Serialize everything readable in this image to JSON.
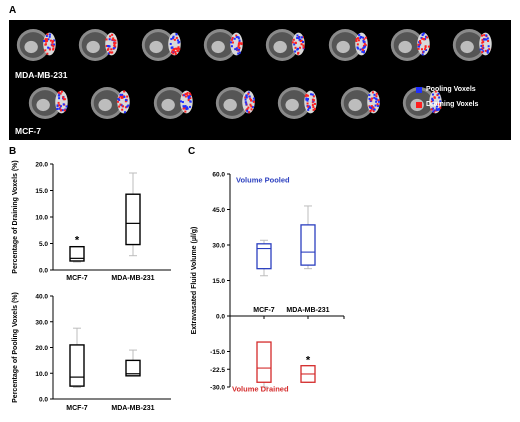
{
  "panels": {
    "a": {
      "letter": "A",
      "row1_label": "MDA-MB-231",
      "row2_label": "MCF-7",
      "legend": [
        {
          "label": "Pooling Voxels",
          "color": "#1f2fff"
        },
        {
          "label": "Draining Voxels",
          "color": "#ff2020"
        }
      ],
      "row1_count": 8,
      "row2_count": 7
    },
    "b": {
      "letter": "B"
    },
    "c": {
      "letter": "C"
    }
  },
  "chart_data": [
    {
      "id": "draining",
      "type": "boxplot",
      "ylabel": "Percentage of Draining Voxels (%)",
      "categories": [
        "MCF-7",
        "MDA-MB-231"
      ],
      "ylim": [
        0,
        20
      ],
      "yticks": [
        "0.0",
        "5.0",
        "10.0",
        "15.0",
        "20.0"
      ],
      "color": "#000000",
      "boxes": [
        {
          "whisker_low": 1.5,
          "q1": 1.7,
          "median": 2.2,
          "q3": 4.4,
          "whisker_high": 4.4
        },
        {
          "whisker_low": 2.7,
          "q1": 4.8,
          "median": 8.8,
          "q3": 14.3,
          "whisker_high": 18.3
        }
      ],
      "annotations": [
        {
          "category": "MCF-7",
          "text": "*"
        }
      ]
    },
    {
      "id": "pooling",
      "type": "boxplot",
      "ylabel": "Percentage of Pooling Voxels (%)",
      "categories": [
        "MCF-7",
        "MDA-MB-231"
      ],
      "ylim": [
        0,
        40
      ],
      "yticks": [
        "0.0",
        "10.0",
        "20.0",
        "30.0",
        "40.0"
      ],
      "color": "#000000",
      "boxes": [
        {
          "whisker_low": 4.5,
          "q1": 5.0,
          "median": 8.5,
          "q3": 21.0,
          "whisker_high": 27.5
        },
        {
          "whisker_low": 9.0,
          "q1": 9.0,
          "median": 9.8,
          "q3": 15.0,
          "whisker_high": 19.0
        }
      ],
      "annotations": []
    },
    {
      "id": "volume",
      "type": "boxplot",
      "ylabel": "Extravasated Fluid Volume (µl/g)",
      "categories": [
        "MCF-7",
        "MDA-MB-231"
      ],
      "ylim": [
        -30,
        60
      ],
      "yticks": [
        "60.0",
        "45.0",
        "30.0",
        "15.0",
        "0.0",
        "-15.0",
        "-22.5",
        "-30.0"
      ],
      "series": [
        {
          "name": "Volume Pooled",
          "color": "#2b3fbf",
          "boxes": [
            {
              "whisker_low": 17.0,
              "q1": 20.0,
              "median": 28.5,
              "q3": 30.5,
              "whisker_high": 32.0
            },
            {
              "whisker_low": 20.0,
              "q1": 21.5,
              "median": 27.0,
              "q3": 38.5,
              "whisker_high": 46.5
            }
          ]
        },
        {
          "name": "Volume Drained",
          "color": "#d42a2a",
          "boxes": [
            {
              "whisker_low": -30.0,
              "q1": -28.0,
              "median": -22.0,
              "q3": -11.0,
              "whisker_high": -11.0
            },
            {
              "whisker_low": -28.0,
              "q1": -28.0,
              "median": -24.5,
              "q3": -21.0,
              "whisker_high": -21.0
            }
          ]
        }
      ],
      "annotations": [
        {
          "category": "MDA-MB-231",
          "text": "*"
        }
      ]
    }
  ]
}
